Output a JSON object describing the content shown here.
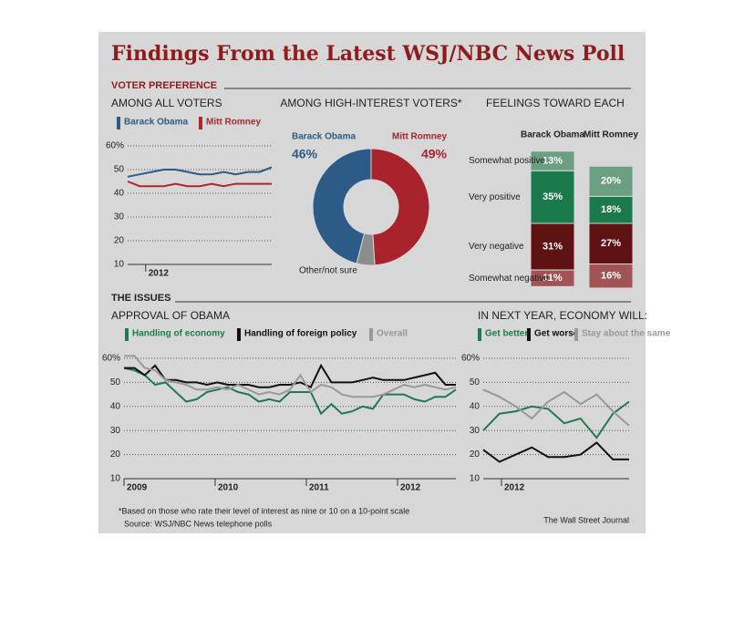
{
  "title": "Findings From the Latest WSJ/NBC News Poll",
  "sections": [
    "VOTER PREFERENCE",
    "THE ISSUES"
  ],
  "footnote": "*Based on those who rate their level of interest as nine or 10 on a 10-point scale",
  "source": "Source: WSJ/NBC News telephone polls",
  "credit": "The Wall Street Journal",
  "chart_data": [
    {
      "type": "line",
      "title": "AMONG ALL VOTERS",
      "xlim": [
        2011.9,
        2012.7
      ],
      "xticks": [
        2012
      ],
      "ylim": [
        10,
        60
      ],
      "yticks": [
        10,
        20,
        30,
        40,
        50,
        {
          "value": 60,
          "label": "60%"
        }
      ],
      "grid": true,
      "series": [
        {
          "name": "Barack Obama",
          "color": "#2b5b86",
          "values": [
            47,
            48,
            49,
            50,
            50,
            49,
            48,
            48,
            49,
            48,
            49,
            49,
            51
          ]
        },
        {
          "name": "Mitt Romney",
          "color": "#b0262e",
          "values": [
            45,
            43,
            43,
            43,
            44,
            43,
            43,
            44,
            43,
            44,
            44,
            44,
            44
          ]
        }
      ]
    },
    {
      "type": "pie",
      "title": "AMONG HIGH-INTEREST VOTERS*",
      "donut": true,
      "categories": [
        "Mitt Romney",
        "Other/not sure",
        "Barack Obama"
      ],
      "values": [
        49,
        5,
        46
      ],
      "value_labels": [
        "49%",
        null,
        "46%"
      ],
      "colors": [
        "#a8232b",
        "#8c8c8c",
        "#2b5b86"
      ]
    },
    {
      "type": "stacked_bar",
      "title": "FEELINGS TOWARD EACH",
      "categories": [
        "Barack Obama",
        "Mitt Romney"
      ],
      "series": [
        {
          "name": "Somewhat positive",
          "color": "#6a9f82",
          "values": [
            13,
            20
          ],
          "value_labels": [
            "13%",
            "20%"
          ]
        },
        {
          "name": "Very positive",
          "color": "#1b7a4c",
          "values": [
            35,
            18
          ],
          "value_labels": [
            "35%",
            "18%"
          ]
        },
        {
          "name": "Very negative",
          "color": "#5e1212",
          "values": [
            31,
            27
          ],
          "value_labels": [
            "31%",
            "27%"
          ]
        },
        {
          "name": "Somewhat negative",
          "color": "#a25454",
          "values": [
            11,
            16
          ],
          "value_labels": [
            "11%",
            "16%"
          ]
        }
      ]
    },
    {
      "type": "line",
      "title": "APPROVAL OF OBAMA",
      "xlim": [
        2009,
        2012.64
      ],
      "xticks": [
        2009,
        2010,
        2011,
        2012
      ],
      "ylim": [
        10,
        60
      ],
      "yticks": [
        10,
        20,
        30,
        40,
        50,
        {
          "value": 60,
          "label": "60%"
        }
      ],
      "grid": true,
      "series": [
        {
          "name": "Handling of economy",
          "color": "#1f7a4f",
          "values": [
            56,
            55,
            53,
            49,
            50,
            46,
            42,
            43,
            46,
            47,
            48,
            46,
            45,
            42,
            43,
            42,
            46,
            46,
            46,
            37,
            41,
            37,
            38,
            40,
            39,
            45,
            45,
            45,
            43,
            42,
            44,
            44,
            47
          ]
        },
        {
          "name": "Handling of foreign policy",
          "color": "#111111",
          "values": [
            56,
            56,
            53,
            57,
            51,
            51,
            50,
            50,
            49,
            50,
            49,
            49,
            49,
            48,
            48,
            49,
            49,
            50,
            48,
            57,
            50,
            50,
            50,
            51,
            52,
            51,
            51,
            51,
            52,
            53,
            54,
            49,
            49
          ]
        },
        {
          "name": "Overall",
          "color": "#999999",
          "values": [
            61,
            61,
            56,
            55,
            51,
            50,
            49,
            47,
            47,
            48,
            47,
            49,
            47,
            45,
            46,
            45,
            47,
            53,
            46,
            49,
            48,
            45,
            44,
            44,
            44,
            45,
            47,
            49,
            48,
            49,
            48,
            47,
            48
          ]
        }
      ]
    },
    {
      "type": "line",
      "title": "IN NEXT YEAR, ECONOMY WILL:",
      "xlim": [
        2011.9,
        2012.7
      ],
      "xticks": [
        2012
      ],
      "ylim": [
        10,
        60
      ],
      "yticks": [
        10,
        20,
        30,
        40,
        50,
        {
          "value": 60,
          "label": "60%"
        }
      ],
      "grid": true,
      "series": [
        {
          "name": "Get better",
          "color": "#1f7a4f",
          "values": [
            30,
            37,
            38,
            40,
            39,
            33,
            35,
            27,
            37,
            42
          ]
        },
        {
          "name": "Get worse",
          "color": "#111111",
          "values": [
            22,
            17,
            20,
            23,
            19,
            19,
            20,
            25,
            18,
            18
          ]
        },
        {
          "name": "Stay about the same",
          "color": "#999999",
          "values": [
            47,
            44,
            40,
            35,
            42,
            46,
            41,
            45,
            38,
            32
          ]
        }
      ]
    }
  ]
}
